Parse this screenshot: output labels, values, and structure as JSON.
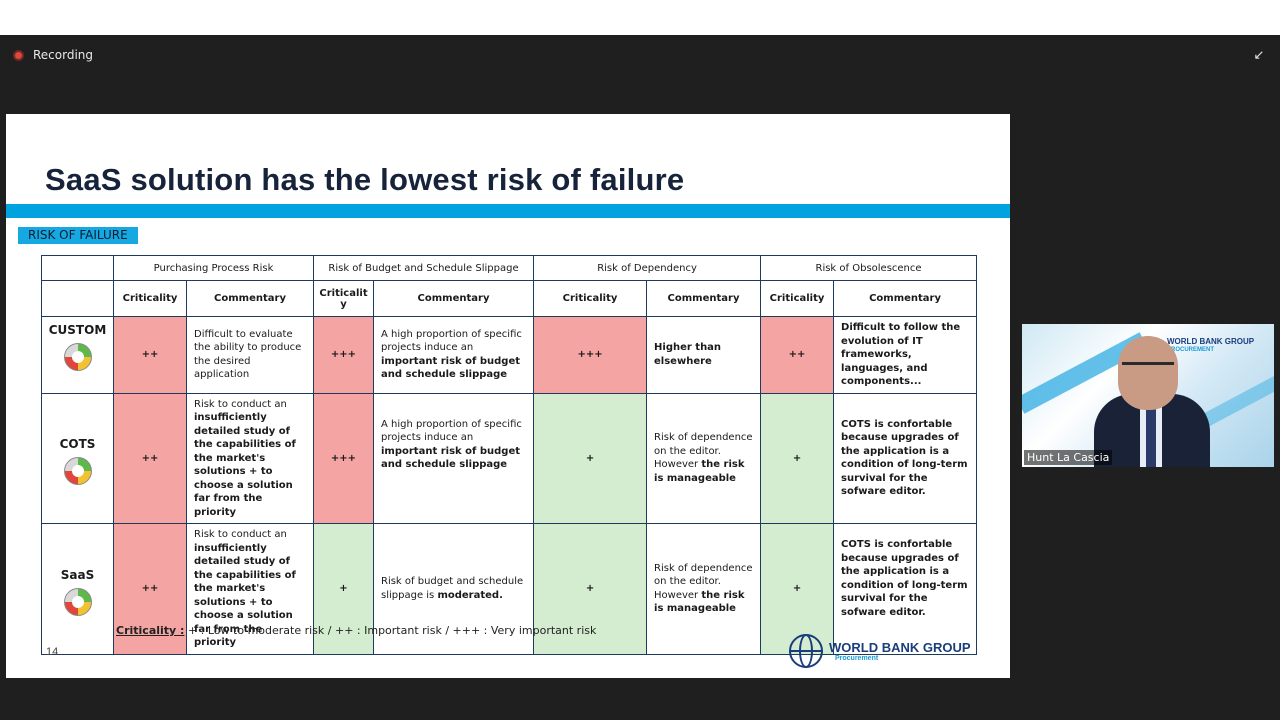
{
  "recording": {
    "label": "Recording"
  },
  "icons": {
    "collapse": "collapse-arrows-icon",
    "recording": "recording-dot-icon",
    "speedometer": "speedometer-icon"
  },
  "colors": {
    "accent": "#00a3e0",
    "high_risk": "#f4a5a3",
    "low_risk": "#d4ecd0",
    "title": "#16233a"
  },
  "slide": {
    "title": "SaaS solution has the lowest risk of failure",
    "badge": "RISK OF FAILURE",
    "page_number": "14",
    "legend_key": "Criticality :",
    "legend_text": " + : Low to moderate risk / ++ : Important risk / +++ : Very important risk",
    "logo": {
      "name": "WORLD BANK GROUP",
      "sub": "Procurement"
    }
  },
  "table": {
    "groups": [
      "Purchasing Process Risk",
      "Risk of Budget and Schedule Slippage",
      "Risk of Dependency",
      "Risk of Obsolescence"
    ],
    "subheaders": {
      "criticality": "Criticality",
      "criticality_wrapped": "Criticalit y",
      "commentary": "Commentary"
    },
    "rows": [
      {
        "name": "CUSTOM",
        "cells": [
          {
            "crit": "++",
            "level": "red",
            "comment": "Difficult to evaluate the ability to produce the desired application"
          },
          {
            "crit": "+++",
            "level": "red",
            "comment": "A high proportion of specific projects induce an important risk of budget and schedule slippage"
          },
          {
            "crit": "+++",
            "level": "red",
            "comment": "Higher than elsewhere"
          },
          {
            "crit": "++",
            "level": "red",
            "comment": "Difficult to follow the evolution of IT frameworks, languages, and components..."
          }
        ]
      },
      {
        "name": "COTS",
        "cells": [
          {
            "crit": "++",
            "level": "red",
            "comment": "Risk to conduct an insufficiently detailed study of the capabilities of the market's solutions + to choose a solution far from the priority"
          },
          {
            "crit": "+++",
            "level": "red",
            "comment": "A high proportion of specific projects induce an important risk of budget and schedule slippage"
          },
          {
            "crit": "+",
            "level": "green",
            "comment": "Risk of dependence on the editor. However the risk is manageable"
          },
          {
            "crit": "+",
            "level": "green",
            "comment": "COTS is confortable because upgrades of the application is a condition of long-term survival for the sofware editor."
          }
        ]
      },
      {
        "name": "SaaS",
        "cells": [
          {
            "crit": "++",
            "level": "red",
            "comment": "Risk to conduct an insufficiently detailed study of the capabilities of the market's solutions + to choose a solution far from the priority"
          },
          {
            "crit": "+",
            "level": "green",
            "comment": "Risk of budget and schedule slippage is moderated."
          },
          {
            "crit": "+",
            "level": "green",
            "comment": "Risk of dependence on the editor. However the risk is manageable"
          },
          {
            "crit": "+",
            "level": "green",
            "comment": "COTS is confortable because upgrades of the application is a condition of long-term survival for the sofware editor."
          }
        ]
      }
    ]
  },
  "video": {
    "name": "Hunt La Cascia",
    "logo_name": "WORLD BANK GROUP",
    "logo_sub": "PROCUREMENT"
  }
}
